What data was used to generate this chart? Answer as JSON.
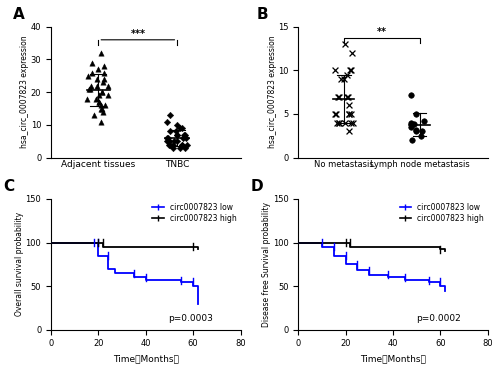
{
  "panel_A": {
    "group1_label": "Adjacent tissues",
    "group2_label": "TNBC",
    "group1_points": [
      26,
      25,
      32,
      28,
      27,
      29,
      26,
      24,
      22,
      21,
      20,
      19,
      18,
      17,
      16,
      15,
      14,
      13,
      22,
      23,
      19,
      21,
      18,
      20,
      24,
      22,
      16,
      17,
      15,
      11
    ],
    "group2_points": [
      13,
      11,
      10,
      9,
      8,
      7,
      6,
      5,
      4,
      3,
      4,
      5,
      6,
      7,
      8,
      9,
      5,
      4,
      3,
      4,
      6,
      7,
      5,
      4,
      5,
      6,
      4,
      3,
      5,
      7
    ],
    "ylabel": "hsa_circ_0007823 expression",
    "ylim": [
      0,
      40
    ],
    "yticks": [
      0,
      10,
      20,
      30,
      40
    ],
    "sig_text": "***",
    "panel_label": "A"
  },
  "panel_B": {
    "group1_label": "No metastasis",
    "group2_label": "Lymph node metastasis",
    "group1_points": [
      13,
      12,
      10,
      10,
      10,
      9.5,
      9,
      9,
      7,
      7,
      7,
      7,
      6,
      5,
      5,
      5,
      5,
      5,
      4,
      4,
      4,
      4,
      4,
      4,
      3
    ],
    "group2_points": [
      7.2,
      5,
      4.2,
      4,
      3.8,
      3.5,
      3.2,
      3,
      3,
      2.5,
      2
    ],
    "ylabel": "hsa_circ_0007823 expression",
    "ylim": [
      0,
      15
    ],
    "yticks": [
      0,
      5,
      10,
      15
    ],
    "sig_text": "**",
    "panel_label": "B"
  },
  "panel_C": {
    "panel_label": "C",
    "ylabel": "Overall survival probability",
    "xlabel": "Time（Months）",
    "xlim": [
      0,
      80
    ],
    "ylim": [
      0,
      150
    ],
    "yticks": [
      0,
      50,
      100,
      150
    ],
    "xticks": [
      0,
      20,
      40,
      60,
      80
    ],
    "pvalue": "p=0.0003",
    "low_times": [
      0,
      18,
      20,
      24,
      27,
      35,
      40,
      55,
      60,
      62
    ],
    "low_surv": [
      100,
      100,
      85,
      70,
      65,
      60,
      57,
      55,
      50,
      30
    ],
    "high_times": [
      0,
      20,
      22,
      60,
      62
    ],
    "high_surv": [
      100,
      100,
      95,
      95,
      93
    ],
    "low_color": "#0000ff",
    "high_color": "#000000",
    "legend_label_low": "circ0007823 low",
    "legend_label_high": "circ0007823 high"
  },
  "panel_D": {
    "panel_label": "D",
    "ylabel": "Disease free Survival probability",
    "xlabel": "Time（Months）",
    "xlim": [
      0,
      80
    ],
    "ylim": [
      0,
      150
    ],
    "yticks": [
      0,
      50,
      100,
      150
    ],
    "xticks": [
      0,
      20,
      40,
      60,
      80
    ],
    "pvalue": "p=0.0002",
    "low_times": [
      0,
      10,
      15,
      20,
      25,
      30,
      38,
      45,
      55,
      60,
      62
    ],
    "low_surv": [
      100,
      95,
      85,
      75,
      68,
      63,
      60,
      57,
      55,
      50,
      45
    ],
    "high_times": [
      0,
      20,
      22,
      60,
      62
    ],
    "high_surv": [
      100,
      100,
      95,
      92,
      90
    ],
    "low_color": "#0000ff",
    "high_color": "#000000",
    "legend_label_low": "circ0007823 low",
    "legend_label_high": "circ0007823 high"
  },
  "background_color": "#ffffff"
}
